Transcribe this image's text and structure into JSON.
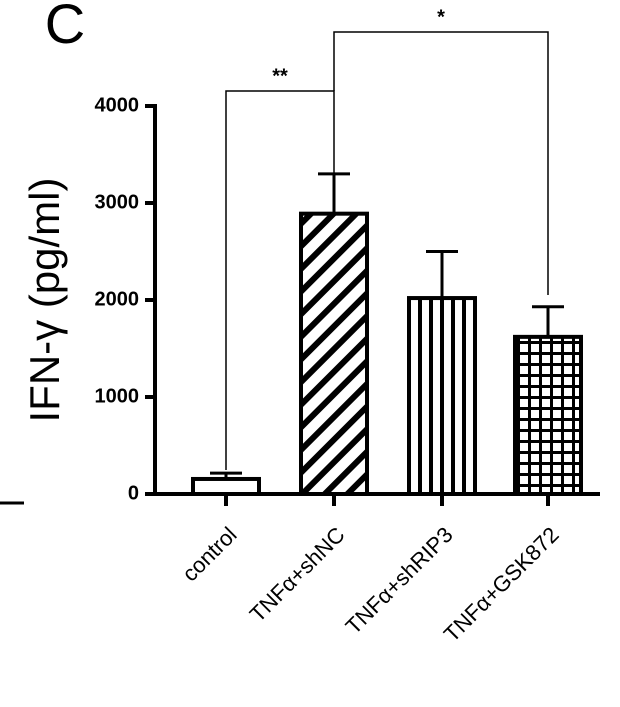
{
  "chart_data": {
    "type": "bar",
    "panel_label": "C",
    "y_label": "IFN-γ (pg/ml)",
    "categories": [
      "control",
      "TNFα+shNC",
      "TNFα+shRIP3",
      "TNFα+GSK872"
    ],
    "values": [
      155,
      2890,
      2020,
      1620
    ],
    "errors": [
      60,
      410,
      480,
      310
    ],
    "color": "#000000",
    "ylim": [
      0,
      4000
    ],
    "yticks": [
      0,
      1000,
      2000,
      3000,
      4000
    ],
    "annotations": [
      "**",
      "*"
    ]
  }
}
